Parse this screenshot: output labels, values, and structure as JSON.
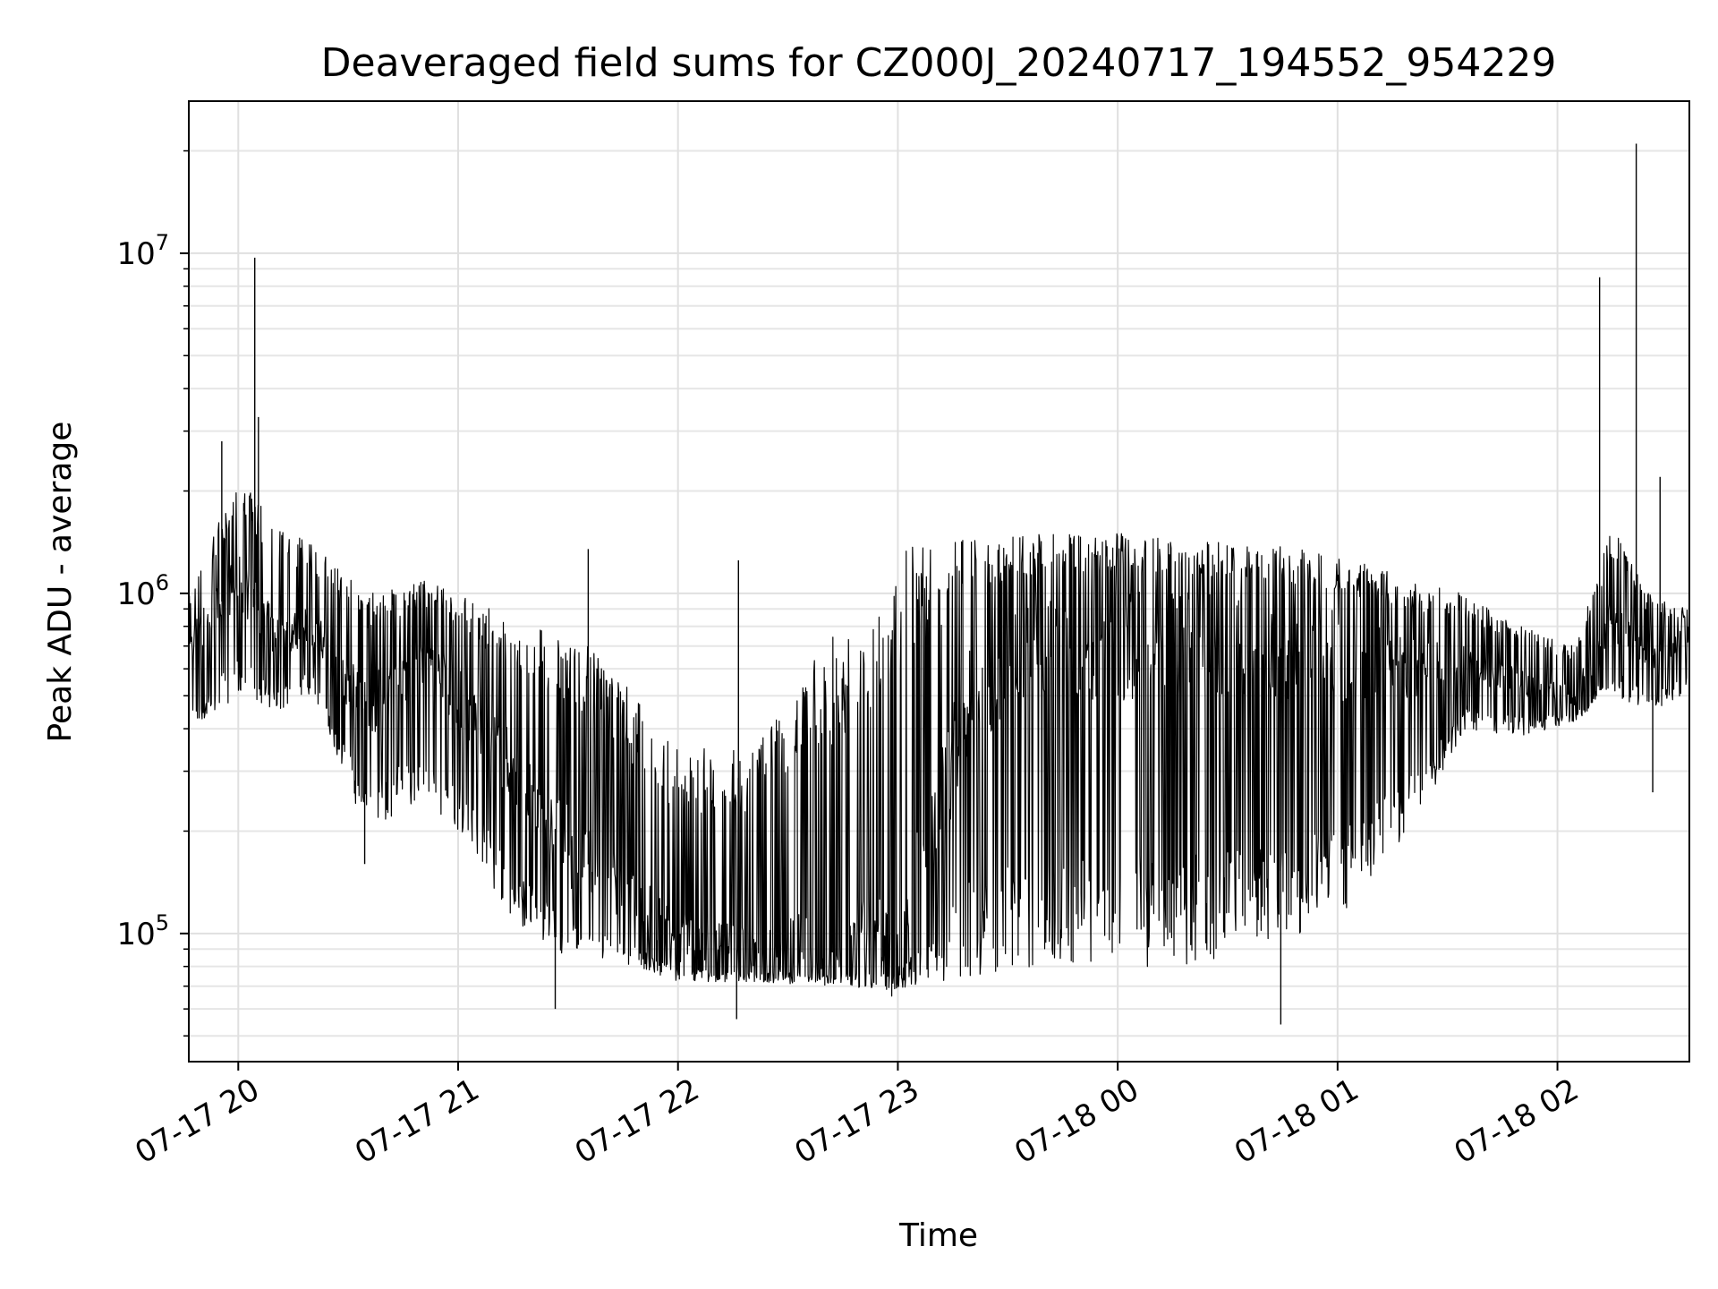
{
  "chart_data": {
    "type": "line",
    "title": "Deaveraged field sums for CZ000J_20240717_194552_954229",
    "xlabel": "Time",
    "ylabel": "Peak ADU - average",
    "yscale": "log",
    "ylim": [
      42000,
      28000000
    ],
    "xlim": [
      "2024-07-17T19:46:30",
      "2024-07-18T02:36:00"
    ],
    "grid": true,
    "line_color": "#000000",
    "x_ticks": [
      {
        "t": "2024-07-17T20:00:00",
        "label": "07-17 20"
      },
      {
        "t": "2024-07-17T21:00:00",
        "label": "07-17 21"
      },
      {
        "t": "2024-07-17T22:00:00",
        "label": "07-17 22"
      },
      {
        "t": "2024-07-17T23:00:00",
        "label": "07-17 23"
      },
      {
        "t": "2024-07-18T00:00:00",
        "label": "07-18 00"
      },
      {
        "t": "2024-07-18T01:00:00",
        "label": "07-18 01"
      },
      {
        "t": "2024-07-18T02:00:00",
        "label": "07-18 02"
      }
    ],
    "y_ticks": [
      {
        "value": 100000,
        "base": "10",
        "exp": "5"
      },
      {
        "value": 1000000,
        "base": "10",
        "exp": "6"
      },
      {
        "value": 10000000,
        "base": "10",
        "exp": "7"
      }
    ],
    "series": [
      {
        "x_start": "2024-07-17T19:46:30",
        "x_end": "2024-07-18T02:36:00",
        "envelope": [
          {
            "t": "2024-07-17T19:46:30",
            "lo": 380000,
            "hi": 1000000,
            "typ": 700000
          },
          {
            "t": "2024-07-17T20:00:00",
            "lo": 500000,
            "hi": 2200000,
            "typ": 1100000
          },
          {
            "t": "2024-07-17T20:10:00",
            "lo": 450000,
            "hi": 1600000,
            "typ": 750000
          },
          {
            "t": "2024-07-17T20:20:00",
            "lo": 500000,
            "hi": 1400000,
            "typ": 800000
          },
          {
            "t": "2024-07-17T20:35:00",
            "lo": 200000,
            "hi": 1000000,
            "typ": 450000
          },
          {
            "t": "2024-07-17T20:50:00",
            "lo": 250000,
            "hi": 1100000,
            "typ": 650000
          },
          {
            "t": "2024-07-17T21:00:00",
            "lo": 200000,
            "hi": 1000000,
            "typ": 500000
          },
          {
            "t": "2024-07-17T21:15:00",
            "lo": 110000,
            "hi": 850000,
            "typ": 300000
          },
          {
            "t": "2024-07-17T21:30:00",
            "lo": 85000,
            "hi": 800000,
            "typ": 180000
          },
          {
            "t": "2024-07-17T21:45:00",
            "lo": 80000,
            "hi": 550000,
            "typ": 130000
          },
          {
            "t": "2024-07-17T22:00:00",
            "lo": 72000,
            "hi": 350000,
            "typ": 95000
          },
          {
            "t": "2024-07-17T22:20:00",
            "lo": 72000,
            "hi": 350000,
            "typ": 88000
          },
          {
            "t": "2024-07-17T22:40:00",
            "lo": 70000,
            "hi": 700000,
            "typ": 90000
          },
          {
            "t": "2024-07-17T23:00:00",
            "lo": 68000,
            "hi": 1400000,
            "typ": 95000
          },
          {
            "t": "2024-07-17T23:20:00",
            "lo": 75000,
            "hi": 1450000,
            "typ": 500000
          },
          {
            "t": "2024-07-17T23:40:00",
            "lo": 80000,
            "hi": 1500000,
            "typ": 700000
          },
          {
            "t": "2024-07-18T00:00:00",
            "lo": 80000,
            "hi": 1500000,
            "typ": 700000
          },
          {
            "t": "2024-07-18T00:20:00",
            "lo": 80000,
            "hi": 1450000,
            "typ": 700000
          },
          {
            "t": "2024-07-18T00:40:00",
            "lo": 90000,
            "hi": 1400000,
            "typ": 700000
          },
          {
            "t": "2024-07-18T01:00:00",
            "lo": 110000,
            "hi": 1300000,
            "typ": 650000
          },
          {
            "t": "2024-07-18T01:20:00",
            "lo": 200000,
            "hi": 1100000,
            "typ": 600000
          },
          {
            "t": "2024-07-18T01:35:00",
            "lo": 400000,
            "hi": 1000000,
            "typ": 620000
          },
          {
            "t": "2024-07-18T01:50:00",
            "lo": 380000,
            "hi": 800000,
            "typ": 550000
          },
          {
            "t": "2024-07-18T02:05:00",
            "lo": 420000,
            "hi": 700000,
            "typ": 500000
          },
          {
            "t": "2024-07-18T02:15:00",
            "lo": 500000,
            "hi": 1600000,
            "typ": 850000
          },
          {
            "t": "2024-07-18T02:25:00",
            "lo": 450000,
            "hi": 1000000,
            "typ": 650000
          },
          {
            "t": "2024-07-18T02:36:00",
            "lo": 500000,
            "hi": 900000,
            "typ": 750000
          }
        ],
        "spikes": [
          {
            "t": "2024-07-17T20:04:30",
            "value": 9700000
          },
          {
            "t": "2024-07-17T20:05:30",
            "value": 3300000
          },
          {
            "t": "2024-07-17T19:55:30",
            "value": 2800000
          },
          {
            "t": "2024-07-18T02:11:30",
            "value": 8500000
          },
          {
            "t": "2024-07-18T02:21:30",
            "value": 21000000
          },
          {
            "t": "2024-07-18T02:28:00",
            "value": 2200000
          },
          {
            "t": "2024-07-17T21:35:30",
            "value": 1350000
          },
          {
            "t": "2024-07-17T22:16:30",
            "value": 1250000
          },
          {
            "t": "2024-07-17T21:26:30",
            "value": 60000
          },
          {
            "t": "2024-07-17T22:16:00",
            "value": 56000
          },
          {
            "t": "2024-07-18T00:44:30",
            "value": 54000
          },
          {
            "t": "2024-07-18T02:26:00",
            "value": 260000
          },
          {
            "t": "2024-07-17T20:34:30",
            "value": 160000
          }
        ]
      }
    ]
  }
}
